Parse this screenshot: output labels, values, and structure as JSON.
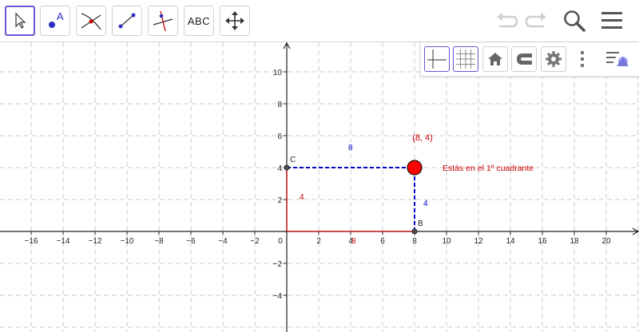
{
  "toolbar": {
    "tools": [
      {
        "name": "move-tool",
        "active": true
      },
      {
        "name": "point-tool",
        "glyph": "A"
      },
      {
        "name": "intersect-tool"
      },
      {
        "name": "segment-tool"
      },
      {
        "name": "perpendicular-tool"
      },
      {
        "name": "text-tool",
        "label": "ABC"
      },
      {
        "name": "move-graphics-view-tool"
      }
    ],
    "right_icons": [
      "undo-icon",
      "redo-icon",
      "search-icon",
      "menu-icon"
    ]
  },
  "style_bar": {
    "buttons": [
      "axes-icon",
      "grid-icon",
      "home-icon",
      "magnet-icon",
      "gear-icon",
      "more-vert-icon",
      "style-bar-toggle-icon"
    ]
  },
  "graphics": {
    "x_ticks": [
      "−16",
      "−14",
      "−12",
      "−10",
      "−8",
      "−6",
      "−4",
      "−2",
      "0",
      "2",
      "4",
      "6",
      "8",
      "10",
      "12",
      "14",
      "16",
      "18",
      "20"
    ],
    "y_ticks": [
      "10",
      "8",
      "6",
      "4",
      "2",
      "−2",
      "−4"
    ],
    "point_p": {
      "x": 8,
      "y": 4,
      "label": "(8, 4)",
      "color": "#ff0000"
    },
    "point_c": {
      "label": "C"
    },
    "point_b": {
      "label": "B"
    },
    "label_top": "8",
    "label_right": "4",
    "label_left": "4",
    "label_bottom": "8",
    "message": "Estás en el 1º cuadrante",
    "colors": {
      "blue": "#0000cc",
      "red": "#cc0000",
      "point": "#ff0000"
    }
  }
}
